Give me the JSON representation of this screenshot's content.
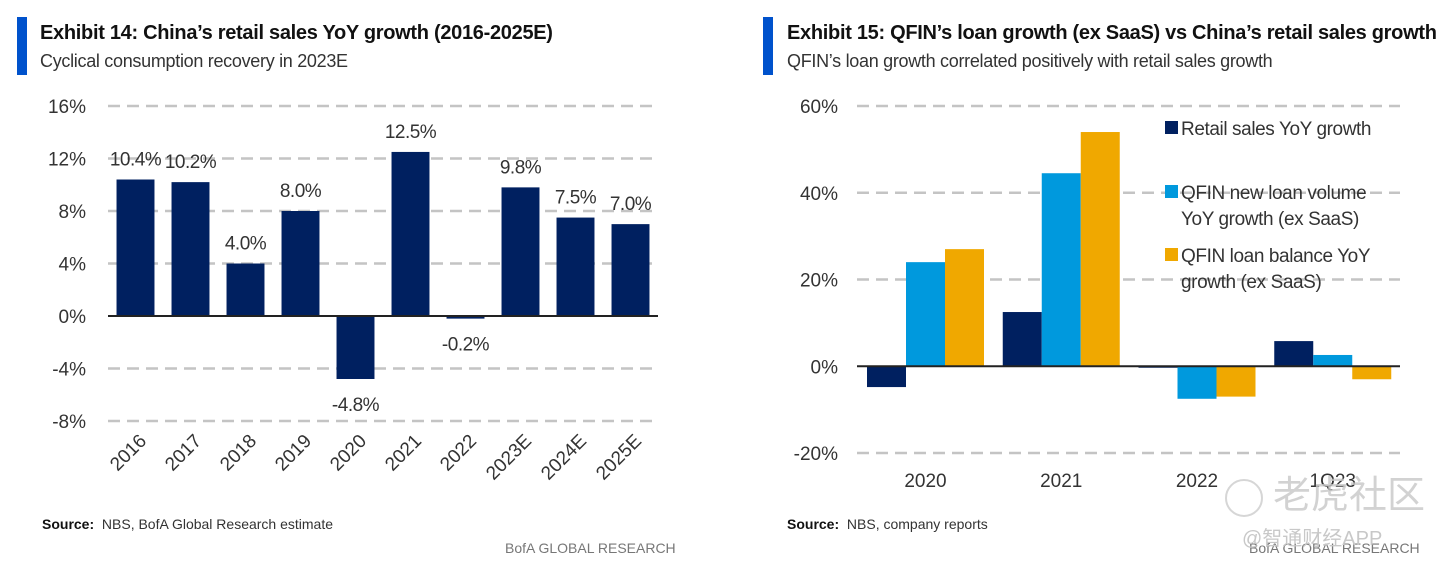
{
  "exhibit14": {
    "title": "Exhibit 14: China’s retail sales YoY growth (2016-2025E)",
    "subtitle": "Cyclical consumption recovery in 2023E",
    "source_label": "Source:",
    "source_text": "NBS, BofA Global Research estimate",
    "brand": "BofA GLOBAL RESEARCH"
  },
  "exhibit15": {
    "title": "Exhibit 15: QFIN’s loan growth (ex SaaS) vs China’s retail sales growth",
    "subtitle": "QFIN’s loan growth correlated positively with retail sales growth",
    "source_label": "Source:",
    "source_text": "NBS, company reports",
    "brand": "BofA GLOBAL RESEARCH"
  },
  "watermarks": {
    "tiger": "老虎社区",
    "zhitong": "@智通财经APP"
  },
  "chart_data": [
    {
      "type": "bar",
      "title": "Exhibit 14: China’s retail sales YoY growth (2016-2025E)",
      "categories": [
        "2016",
        "2017",
        "2018",
        "2019",
        "2020",
        "2021",
        "2022",
        "2023E",
        "2024E",
        "2025E"
      ],
      "values": [
        10.4,
        10.2,
        4.0,
        8.0,
        -4.8,
        12.5,
        -0.2,
        9.8,
        7.5,
        7.0
      ],
      "data_labels": [
        "10.4%",
        "10.2%",
        "4.0%",
        "8.0%",
        "-4.8%",
        "12.5%",
        "-0.2%",
        "9.8%",
        "7.5%",
        "7.0%"
      ],
      "yticks": [
        16,
        12,
        8,
        4,
        0,
        -4,
        -8
      ],
      "ytick_labels": [
        "16%",
        "12%",
        "8%",
        "4%",
        "0%",
        "-4%",
        "-8%"
      ],
      "ylim": [
        -8,
        16
      ],
      "xlabel": "",
      "ylabel": "",
      "grid": true,
      "color": "#002060"
    },
    {
      "type": "bar",
      "title": "Exhibit 15: QFIN’s loan growth (ex SaaS) vs China’s retail sales growth",
      "categories": [
        "2020",
        "2021",
        "2022",
        "1Q23"
      ],
      "series": [
        {
          "name": "Retail sales YoY growth",
          "values": [
            -4.8,
            12.5,
            -0.2,
            5.8
          ],
          "color": "#002060"
        },
        {
          "name": "QFIN new loan volume YoY growth (ex SaaS)",
          "values": [
            24.0,
            44.5,
            -7.5,
            2.6
          ],
          "color": "#0099dd"
        },
        {
          "name": "QFIN loan balance YoY growth (ex SaaS)",
          "values": [
            27.0,
            54.0,
            -7.0,
            -3.0
          ],
          "color": "#f0a800"
        }
      ],
      "legend_lines": [
        [
          "Retail sales YoY growth"
        ],
        [
          "QFIN new loan volume",
          "YoY growth (ex SaaS)"
        ],
        [
          "QFIN loan balance YoY",
          "growth (ex SaaS)"
        ]
      ],
      "yticks": [
        60,
        40,
        20,
        0,
        -20
      ],
      "ytick_labels": [
        "60%",
        "40%",
        "20%",
        "0%",
        "-20%"
      ],
      "ylim": [
        -20,
        60
      ],
      "xlabel": "",
      "ylabel": "",
      "grid": true,
      "legend": "top-right"
    }
  ]
}
